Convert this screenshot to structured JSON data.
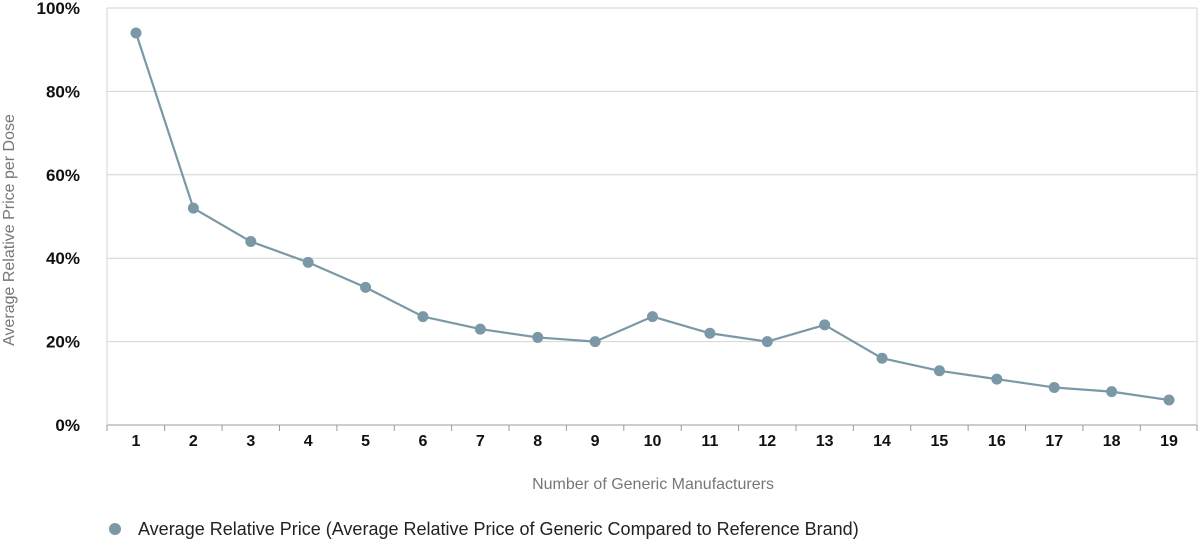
{
  "colors": {
    "series": "#7b98a6",
    "grid": "#d4d4d4",
    "axis": "#999999"
  },
  "chart_data": {
    "type": "line",
    "categories": [
      "1",
      "2",
      "3",
      "4",
      "5",
      "6",
      "7",
      "8",
      "9",
      "10",
      "11",
      "12",
      "13",
      "14",
      "15",
      "16",
      "17",
      "18",
      "19"
    ],
    "series": [
      {
        "name": "Average Relative Price (Average Relative Price of Generic Compared to Reference Brand)",
        "values": [
          94,
          52,
          44,
          39,
          33,
          26,
          23,
          21,
          20,
          26,
          22,
          20,
          24,
          16,
          13,
          11,
          9,
          8,
          6
        ],
        "marker": "circle"
      }
    ],
    "xlabel": "Number of Generic Manufacturers",
    "ylabel": "Average Relative Price per Dose",
    "ylim": [
      0,
      100
    ],
    "yticks": [
      0,
      20,
      40,
      60,
      80,
      100
    ],
    "ytick_labels": [
      "0%",
      "20%",
      "40%",
      "60%",
      "80%",
      "100%"
    ],
    "grid": true,
    "legend_position": "bottom-left"
  }
}
